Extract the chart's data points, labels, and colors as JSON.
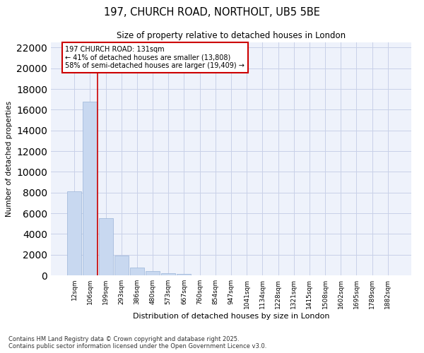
{
  "title_line1": "197, CHURCH ROAD, NORTHOLT, UB5 5BE",
  "title_line2": "Size of property relative to detached houses in London",
  "xlabel": "Distribution of detached houses by size in London",
  "ylabel": "Number of detached properties",
  "categories": [
    "12sqm",
    "106sqm",
    "199sqm",
    "293sqm",
    "386sqm",
    "480sqm",
    "573sqm",
    "667sqm",
    "760sqm",
    "854sqm",
    "947sqm",
    "1041sqm",
    "1134sqm",
    "1228sqm",
    "1321sqm",
    "1415sqm",
    "1508sqm",
    "1602sqm",
    "1695sqm",
    "1789sqm",
    "1882sqm"
  ],
  "values": [
    8100,
    16800,
    5500,
    1900,
    750,
    380,
    200,
    120,
    0,
    0,
    0,
    0,
    0,
    0,
    0,
    0,
    0,
    0,
    0,
    0,
    0
  ],
  "bar_color": "#c8d8f0",
  "bar_edge_color": "#9ab4d8",
  "vline_x_index": 1.5,
  "vline_color": "#cc0000",
  "annotation_text": "197 CHURCH ROAD: 131sqm\n← 41% of detached houses are smaller (13,808)\n58% of semi-detached houses are larger (19,409) →",
  "ylim": [
    0,
    22500
  ],
  "yticks": [
    0,
    2000,
    4000,
    6000,
    8000,
    10000,
    12000,
    14000,
    16000,
    18000,
    20000,
    22000
  ],
  "bg_color": "#eef2fb",
  "grid_color": "#c8d0e8",
  "footer_line1": "Contains HM Land Registry data © Crown copyright and database right 2025.",
  "footer_line2": "Contains public sector information licensed under the Open Government Licence v3.0."
}
